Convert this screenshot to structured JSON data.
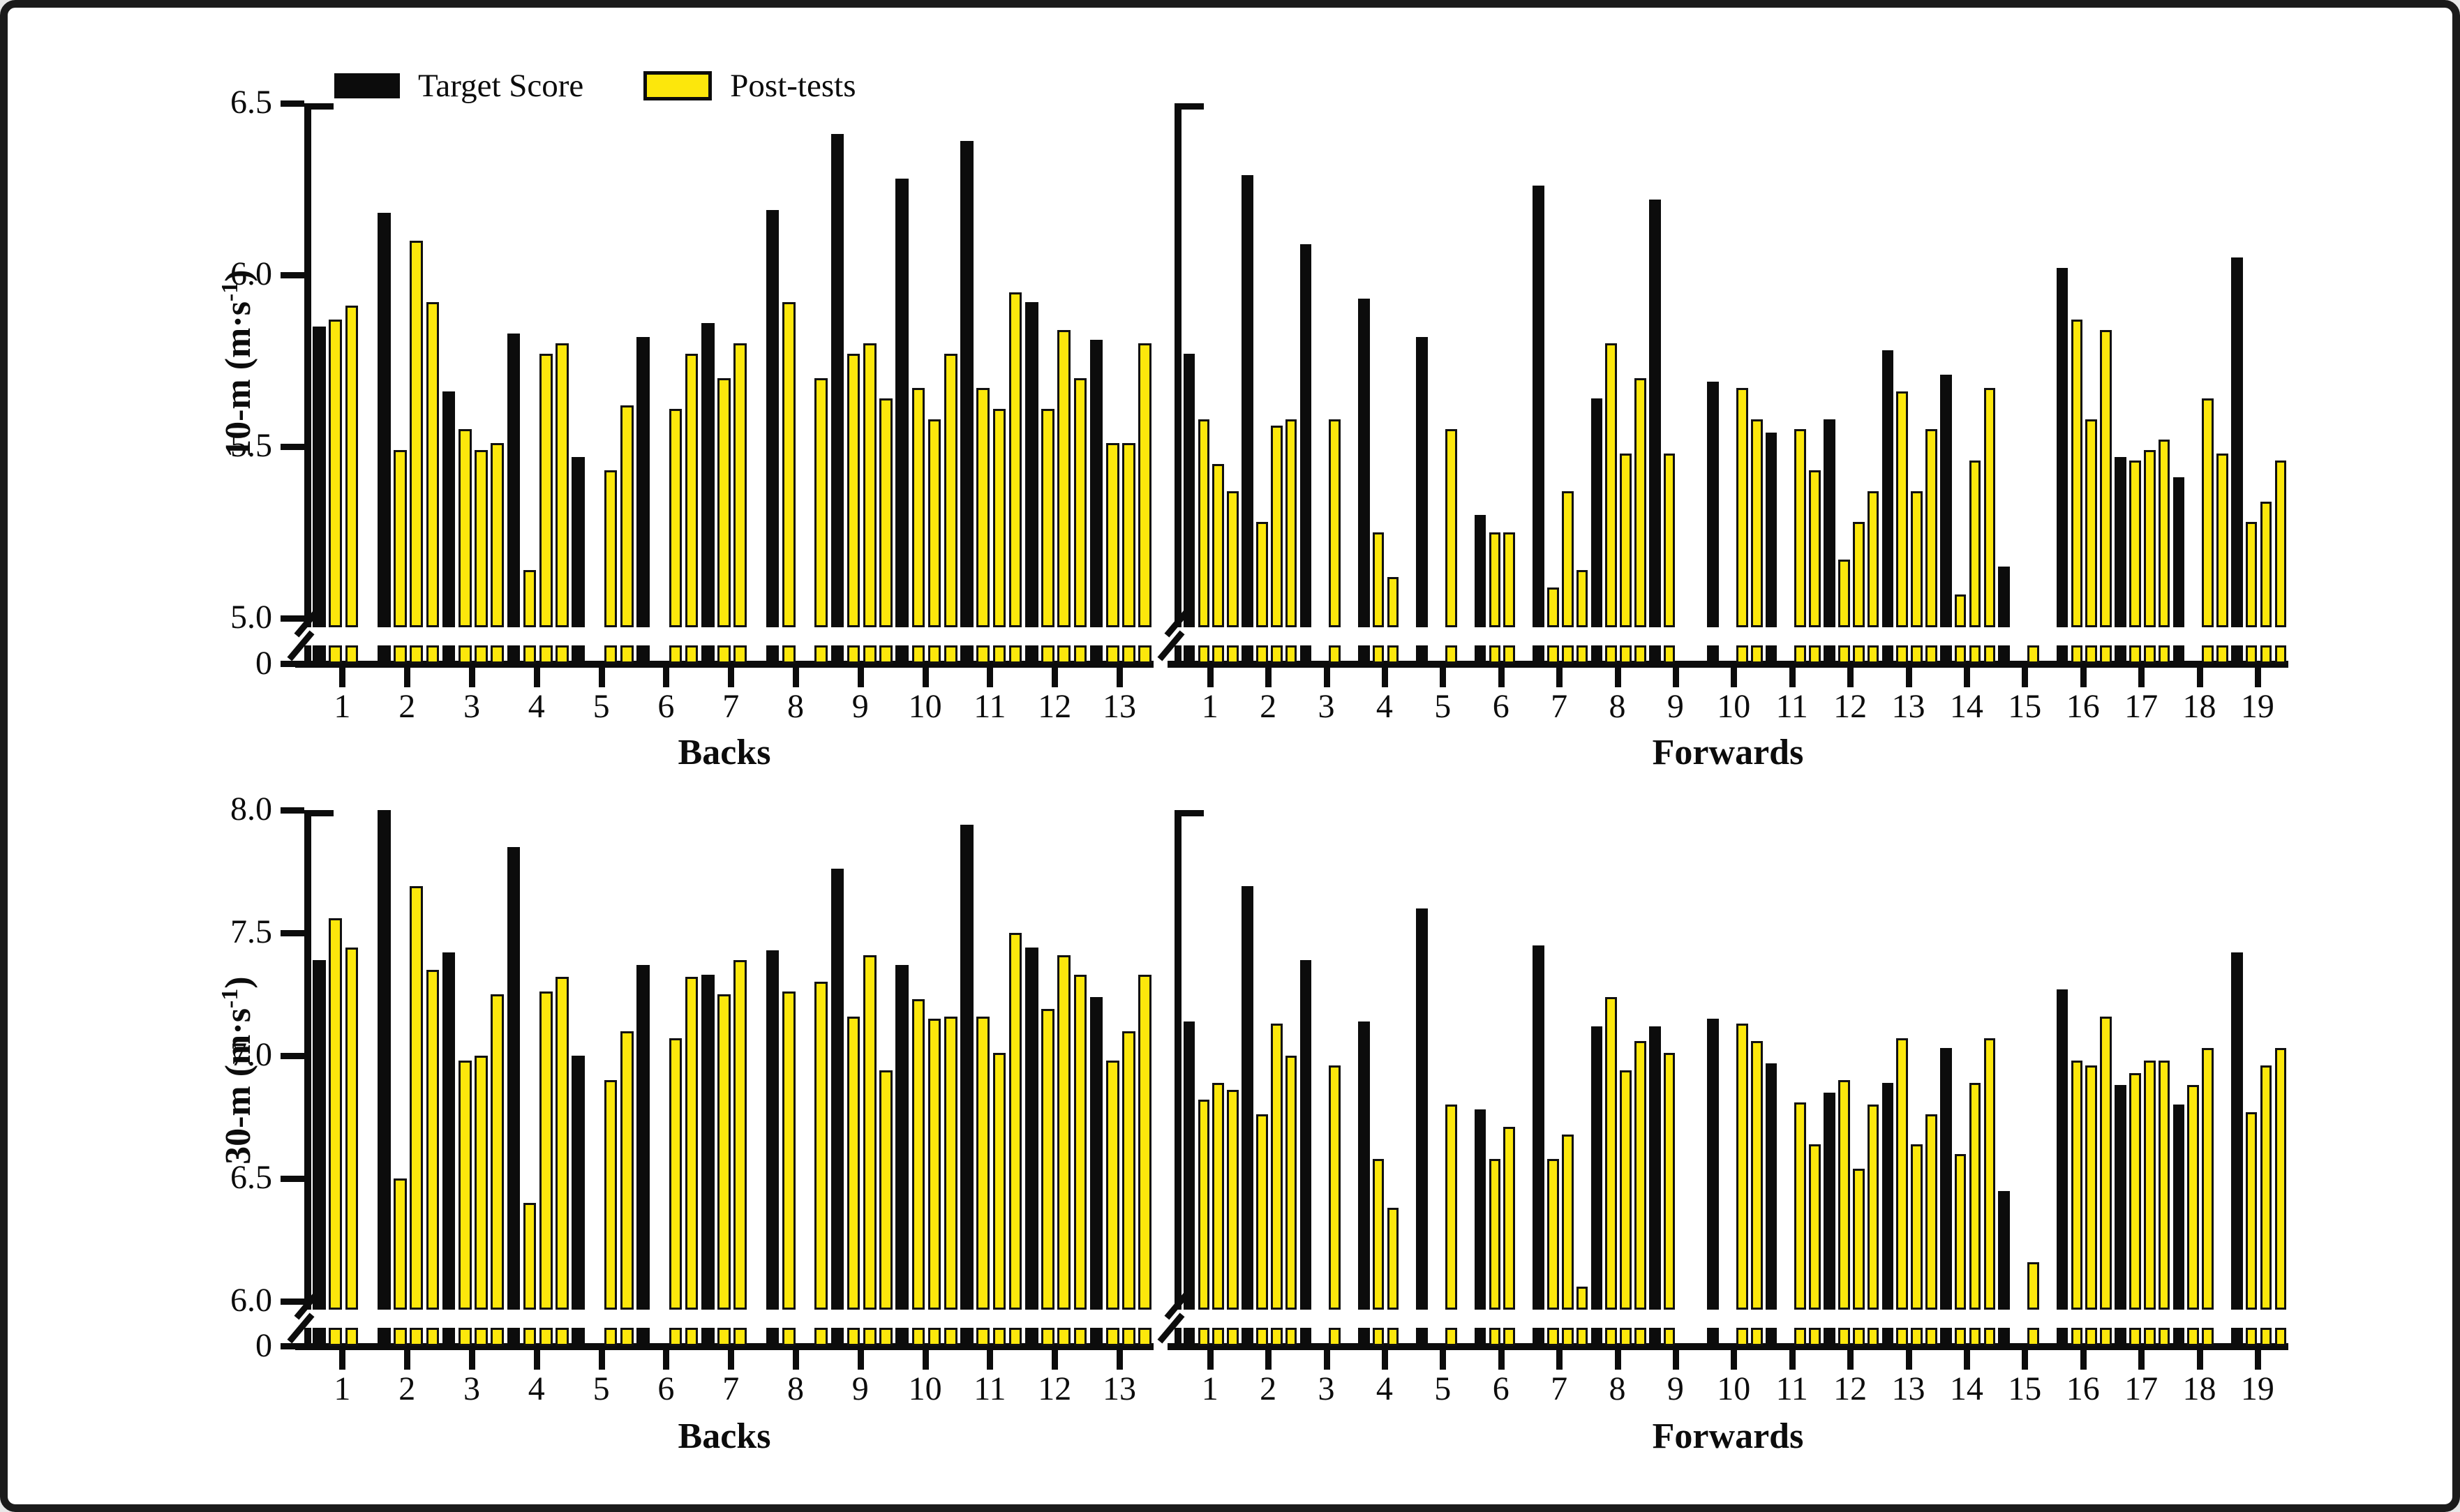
{
  "figure": {
    "background": "#ffffff",
    "border_color": "#1b1b1b",
    "bar_color_target": "#0c0c0c",
    "bar_color_posttest": "#fce70c"
  },
  "legend": {
    "items": [
      {
        "label": "Target Score",
        "color": "#0c0c0c"
      },
      {
        "label": "Post-tests",
        "color": "#fce70c"
      }
    ]
  },
  "chart_data": [
    {
      "id": "10m-backs",
      "type": "bar",
      "ylabel": {
        "base": "10-m (m·s",
        "sup": "-1",
        "close": ")"
      },
      "xlabel": "Backs",
      "ylim": [
        5.0,
        6.5
      ],
      "yticks": [
        "6.5",
        "6.0",
        "5.5",
        "5.0"
      ],
      "baseline_label": "0",
      "axis_break": true,
      "legend_position": "top-left",
      "series_names": [
        "Target Score",
        "Post-tests"
      ],
      "categories": [
        "1",
        "2",
        "3",
        "4",
        "5",
        "6",
        "7",
        "8",
        "9",
        "10",
        "11",
        "12",
        "13"
      ],
      "subjects": [
        {
          "id": "1",
          "target": 5.85,
          "posts": [
            5.87,
            5.91,
            null
          ]
        },
        {
          "id": "2",
          "target": 6.18,
          "posts": [
            5.49,
            6.1,
            5.92
          ]
        },
        {
          "id": "3",
          "target": 5.66,
          "posts": [
            5.55,
            5.49,
            5.51
          ]
        },
        {
          "id": "4",
          "target": 5.83,
          "posts": [
            5.14,
            5.77,
            5.8
          ]
        },
        {
          "id": "5",
          "target": 5.47,
          "posts": [
            null,
            5.43,
            5.62
          ]
        },
        {
          "id": "6",
          "target": 5.82,
          "posts": [
            null,
            5.61,
            5.77
          ]
        },
        {
          "id": "7",
          "target": 5.86,
          "posts": [
            5.7,
            5.8,
            null
          ]
        },
        {
          "id": "8",
          "target": 6.19,
          "posts": [
            5.92,
            null,
            5.7
          ]
        },
        {
          "id": "9",
          "target": 6.41,
          "posts": [
            5.77,
            5.8,
            5.64
          ]
        },
        {
          "id": "10",
          "target": 6.28,
          "posts": [
            5.67,
            5.58,
            5.77
          ]
        },
        {
          "id": "11",
          "target": 6.39,
          "posts": [
            5.67,
            5.61,
            5.95
          ]
        },
        {
          "id": "12",
          "target": 5.92,
          "posts": [
            5.61,
            5.84,
            5.7
          ]
        },
        {
          "id": "13",
          "target": 5.81,
          "posts": [
            5.51,
            5.51,
            5.8
          ]
        }
      ]
    },
    {
      "id": "10m-forwards",
      "type": "bar",
      "ylabel": null,
      "xlabel": "Forwards",
      "ylim": [
        5.0,
        6.5
      ],
      "yticks": [],
      "baseline_label": null,
      "axis_break": true,
      "series_names": [
        "Target Score",
        "Post-tests"
      ],
      "categories": [
        "1",
        "2",
        "3",
        "4",
        "5",
        "6",
        "7",
        "8",
        "9",
        "10",
        "11",
        "12",
        "13",
        "14",
        "15",
        "16",
        "17",
        "18",
        "19"
      ],
      "subjects": [
        {
          "id": "1",
          "target": 5.77,
          "posts": [
            5.58,
            5.45,
            5.37
          ]
        },
        {
          "id": "2",
          "target": 6.29,
          "posts": [
            5.28,
            5.56,
            5.58
          ]
        },
        {
          "id": "3",
          "target": 6.09,
          "posts": [
            null,
            5.58,
            null
          ]
        },
        {
          "id": "4",
          "target": 5.93,
          "posts": [
            5.25,
            5.12,
            null
          ]
        },
        {
          "id": "5",
          "target": 5.82,
          "posts": [
            null,
            5.55,
            null
          ]
        },
        {
          "id": "6",
          "target": 5.3,
          "posts": [
            5.25,
            5.25,
            null
          ]
        },
        {
          "id": "7",
          "target": 6.26,
          "posts": [
            5.09,
            5.37,
            5.14
          ]
        },
        {
          "id": "8",
          "target": 5.64,
          "posts": [
            5.8,
            5.48,
            5.7
          ]
        },
        {
          "id": "9",
          "target": 6.22,
          "posts": [
            5.48,
            null,
            null
          ]
        },
        {
          "id": "10",
          "target": 5.69,
          "posts": [
            null,
            5.67,
            5.58
          ]
        },
        {
          "id": "11",
          "target": 5.54,
          "posts": [
            null,
            5.55,
            5.43
          ]
        },
        {
          "id": "12",
          "target": 5.58,
          "posts": [
            5.17,
            5.28,
            5.37
          ]
        },
        {
          "id": "13",
          "target": 5.78,
          "posts": [
            5.66,
            5.37,
            5.55
          ]
        },
        {
          "id": "14",
          "target": 5.71,
          "posts": [
            5.07,
            5.46,
            5.67
          ]
        },
        {
          "id": "15",
          "target": 5.15,
          "posts": [
            null,
            4.9,
            null
          ]
        },
        {
          "id": "16",
          "target": 6.02,
          "posts": [
            5.87,
            5.58,
            5.84
          ]
        },
        {
          "id": "17",
          "target": 5.47,
          "posts": [
            5.46,
            5.49,
            5.52
          ]
        },
        {
          "id": "18",
          "target": 5.41,
          "posts": [
            null,
            5.64,
            5.48
          ]
        },
        {
          "id": "19",
          "target": 6.05,
          "posts": [
            5.28,
            5.34,
            5.46
          ]
        }
      ]
    },
    {
      "id": "30m-backs",
      "type": "bar",
      "ylabel": {
        "base": "30-m (m·s",
        "sup": "-1",
        "close": ")"
      },
      "xlabel": "Backs",
      "ylim": [
        6.0,
        8.0
      ],
      "yticks": [
        "8.0",
        "7.5",
        "7.0",
        "6.5",
        "6.0"
      ],
      "baseline_label": "0",
      "axis_break": true,
      "series_names": [
        "Target Score",
        "Post-tests"
      ],
      "categories": [
        "1",
        "2",
        "3",
        "4",
        "5",
        "6",
        "7",
        "8",
        "9",
        "10",
        "11",
        "12",
        "13"
      ],
      "subjects": [
        {
          "id": "1",
          "target": 7.39,
          "posts": [
            7.56,
            7.44,
            null
          ]
        },
        {
          "id": "2",
          "target": 8.0,
          "posts": [
            6.5,
            7.69,
            7.35
          ]
        },
        {
          "id": "3",
          "target": 7.42,
          "posts": [
            6.98,
            7.0,
            7.25
          ]
        },
        {
          "id": "4",
          "target": 7.85,
          "posts": [
            6.4,
            7.26,
            7.32
          ]
        },
        {
          "id": "5",
          "target": 7.0,
          "posts": [
            null,
            6.9,
            7.1
          ]
        },
        {
          "id": "6",
          "target": 7.37,
          "posts": [
            null,
            7.07,
            7.32
          ]
        },
        {
          "id": "7",
          "target": 7.33,
          "posts": [
            7.25,
            7.39,
            null
          ]
        },
        {
          "id": "8",
          "target": 7.43,
          "posts": [
            7.26,
            null,
            7.3
          ]
        },
        {
          "id": "9",
          "target": 7.76,
          "posts": [
            7.16,
            7.41,
            6.94
          ]
        },
        {
          "id": "10",
          "target": 7.37,
          "posts": [
            7.23,
            7.15,
            7.16
          ]
        },
        {
          "id": "11",
          "target": 7.94,
          "posts": [
            7.16,
            7.01,
            7.5
          ]
        },
        {
          "id": "12",
          "target": 7.44,
          "posts": [
            7.19,
            7.41,
            7.33
          ]
        },
        {
          "id": "13",
          "target": 7.24,
          "posts": [
            6.98,
            7.1,
            7.33
          ]
        }
      ]
    },
    {
      "id": "30m-forwards",
      "type": "bar",
      "ylabel": null,
      "xlabel": "Forwards",
      "ylim": [
        6.0,
        8.0
      ],
      "yticks": [],
      "baseline_label": null,
      "axis_break": true,
      "series_names": [
        "Target Score",
        "Post-tests"
      ],
      "categories": [
        "1",
        "2",
        "3",
        "4",
        "5",
        "6",
        "7",
        "8",
        "9",
        "10",
        "11",
        "12",
        "13",
        "14",
        "15",
        "16",
        "17",
        "18",
        "19"
      ],
      "subjects": [
        {
          "id": "1",
          "target": 7.14,
          "posts": [
            6.82,
            6.89,
            6.86
          ]
        },
        {
          "id": "2",
          "target": 7.69,
          "posts": [
            6.76,
            7.13,
            7.0
          ]
        },
        {
          "id": "3",
          "target": 7.39,
          "posts": [
            null,
            6.96,
            null
          ]
        },
        {
          "id": "4",
          "target": 7.14,
          "posts": [
            6.58,
            6.38,
            null
          ]
        },
        {
          "id": "5",
          "target": 7.6,
          "posts": [
            null,
            6.8,
            null
          ]
        },
        {
          "id": "6",
          "target": 6.78,
          "posts": [
            6.58,
            6.71,
            null
          ]
        },
        {
          "id": "7",
          "target": 7.45,
          "posts": [
            6.58,
            6.68,
            6.06
          ]
        },
        {
          "id": "8",
          "target": 7.12,
          "posts": [
            7.24,
            6.94,
            7.06
          ]
        },
        {
          "id": "9",
          "target": 7.12,
          "posts": [
            7.01,
            null,
            null
          ]
        },
        {
          "id": "10",
          "target": 7.15,
          "posts": [
            null,
            7.13,
            7.06
          ]
        },
        {
          "id": "11",
          "target": 6.97,
          "posts": [
            null,
            6.81,
            6.64
          ]
        },
        {
          "id": "12",
          "target": 6.85,
          "posts": [
            6.9,
            6.54,
            6.8
          ]
        },
        {
          "id": "13",
          "target": 6.89,
          "posts": [
            7.07,
            6.64,
            6.76
          ]
        },
        {
          "id": "14",
          "target": 7.03,
          "posts": [
            6.6,
            6.89,
            7.07
          ]
        },
        {
          "id": "15",
          "target": 6.45,
          "posts": [
            null,
            6.16,
            null
          ]
        },
        {
          "id": "16",
          "target": 7.27,
          "posts": [
            6.98,
            6.96,
            7.16
          ]
        },
        {
          "id": "17",
          "target": 6.88,
          "posts": [
            6.93,
            6.98,
            6.98
          ]
        },
        {
          "id": "18",
          "target": 6.8,
          "posts": [
            6.88,
            7.03,
            null
          ]
        },
        {
          "id": "19",
          "target": 7.42,
          "posts": [
            6.77,
            6.96,
            7.03
          ]
        }
      ]
    }
  ]
}
